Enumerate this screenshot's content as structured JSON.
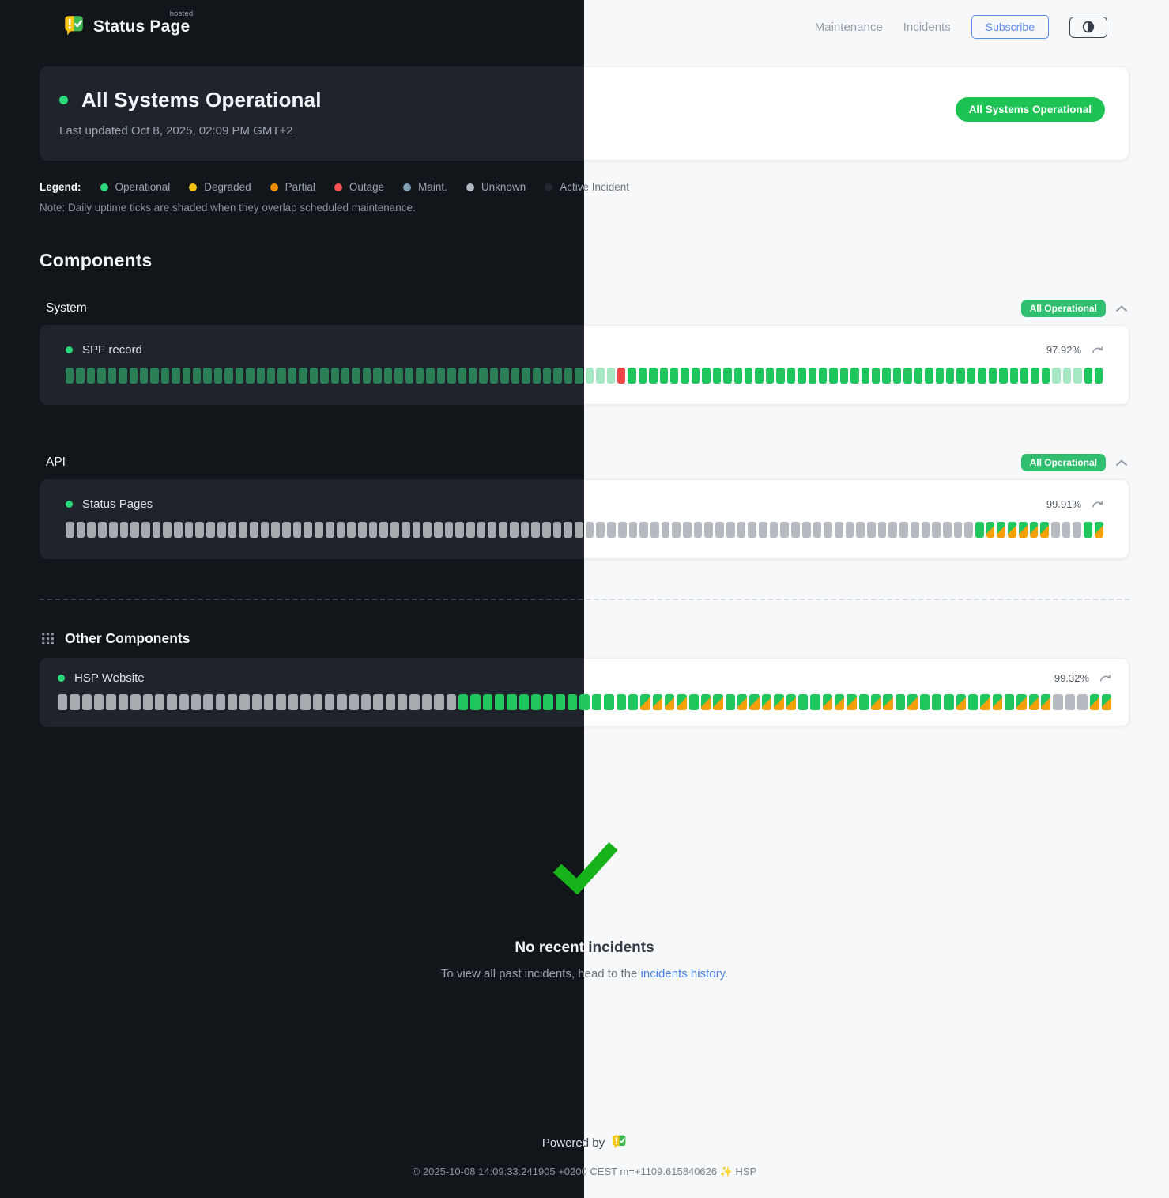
{
  "header": {
    "brand": "Status Page",
    "brand_sup": "hosted",
    "nav": [
      {
        "label": "Maintenance"
      },
      {
        "label": "Incidents"
      }
    ],
    "subscribe_label": "Subscribe"
  },
  "banner": {
    "title": "All Systems Operational",
    "updated": "Last updated Oct 8, 2025, 02:09 PM GMT+2",
    "badge": "All Systems Operational"
  },
  "legend": {
    "label": "Legend:",
    "items": [
      {
        "label": "Operational",
        "color": "#2bd97a"
      },
      {
        "label": "Degraded",
        "color": "#f5c211"
      },
      {
        "label": "Partial",
        "color": "#f08c00"
      },
      {
        "label": "Outage",
        "color": "#fa5252"
      },
      {
        "label": "Maint.",
        "color": "#7f9eb3"
      },
      {
        "label": "Unknown",
        "color": "#adb5bd"
      },
      {
        "label": "Active Incident",
        "color": "#23282e"
      }
    ],
    "note": "Note: Daily uptime ticks are shaded when they overlap scheduled maintenance."
  },
  "components": {
    "heading": "Components",
    "tick_legend": {
      "o": "operational",
      "b": "operational-bright",
      "f": "operational-faded",
      "r": "outage",
      "u": "unknown",
      "m": "operational-with-maintenance"
    },
    "groups": [
      {
        "name": "System",
        "badge": "All Operational",
        "items": [
          {
            "name": "SPF record",
            "uptime": "97.92%",
            "ticks": "ooooooooooooooooooooooooooooooooooooooooooooooooofffroooooooooooooooooooooooooooooooooooooooofffoo"
          }
        ]
      },
      {
        "name": "API",
        "badge": "All Operational",
        "items": [
          {
            "name": "Status Pages",
            "uptime": "99.91%",
            "ticks": "uuuuuuuuuuuuuuuuuuuuuuuuuuuuuuuuuuuuuuuuuuuuuuuuuuuuuuuuuuuuuuuuuuuuuuuuuuuuuuuuuuuuommmmmmuuuom"
          }
        ]
      },
      {
        "name": "Other Components",
        "badge": "",
        "items": [
          {
            "name": "HSP Website",
            "uptime": "99.32%",
            "ticks": "uuuuuuuuuuuuuuuuuuuuuuuuuuuuuuuuubbbbbbbbbbbbboommmmommommmmmoommmommomooomommommmuuumm"
          }
        ]
      }
    ]
  },
  "incidents": {
    "title": "No recent incidents",
    "sub_prefix": "To view all past incidents, head to the ",
    "link_label": "incidents history",
    "sub_suffix": "."
  },
  "footer": {
    "powered_prefix": "Powered by",
    "copyright": "© 2025-10-08 14:09:33.241905 +0200 CEST m=+1109.615840626",
    "sparkle": "✨",
    "brand_suffix": "HSP"
  },
  "colors": {
    "status_badge": "#1fc353",
    "group_badge": "#2fbf6f",
    "subscribe_accent": "#5b8def",
    "check_icon": "#17b31b",
    "outage_tick": "#f14545",
    "maintenance_tick": "#f6a009",
    "operational_tick_light": "#21c55d",
    "operational_tick_dark": "#2a7f57"
  }
}
